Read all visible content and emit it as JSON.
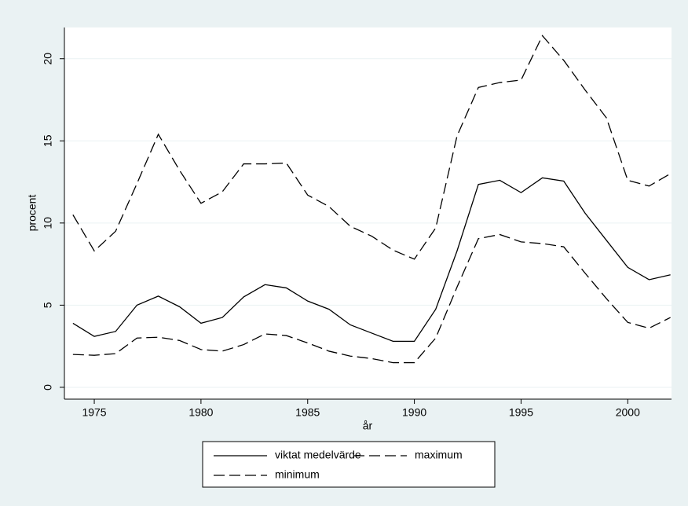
{
  "chart_data": {
    "type": "line",
    "x": [
      1974,
      1975,
      1976,
      1977,
      1978,
      1979,
      1980,
      1981,
      1982,
      1983,
      1984,
      1985,
      1986,
      1987,
      1988,
      1989,
      1990,
      1991,
      1992,
      1993,
      1994,
      1995,
      1996,
      1997,
      1998,
      1999,
      2000,
      2001,
      2002
    ],
    "series": [
      {
        "name": "viktat medelvärde",
        "color": "#000000",
        "style": "solid",
        "values": [
          3.9,
          3.1,
          3.4,
          5.0,
          5.55,
          4.9,
          3.9,
          4.25,
          5.5,
          6.25,
          6.05,
          5.25,
          4.75,
          3.8,
          3.3,
          2.8,
          2.8,
          4.75,
          8.3,
          12.35,
          12.6,
          11.85,
          12.75,
          12.55,
          10.6,
          8.95,
          7.3,
          6.55,
          6.85
        ]
      },
      {
        "name": "maximum",
        "color": "#000000",
        "style": "dashed",
        "values": [
          10.5,
          8.3,
          9.5,
          12.4,
          15.4,
          13.2,
          11.2,
          11.9,
          13.6,
          13.6,
          13.65,
          11.7,
          11.0,
          9.8,
          9.2,
          8.35,
          7.8,
          9.7,
          15.3,
          18.25,
          18.55,
          18.7,
          21.4,
          19.9,
          18.1,
          16.4,
          12.6,
          12.25,
          13.0
        ]
      },
      {
        "name": "minimum",
        "color": "#000000",
        "style": "dashed",
        "values": [
          2.0,
          1.95,
          2.05,
          3.0,
          3.05,
          2.85,
          2.3,
          2.2,
          2.6,
          3.25,
          3.15,
          2.7,
          2.2,
          1.9,
          1.75,
          1.5,
          1.5,
          3.0,
          6.1,
          9.05,
          9.3,
          8.85,
          8.75,
          8.55,
          6.95,
          5.4,
          3.95,
          3.6,
          4.25
        ]
      }
    ],
    "x_label": "år",
    "y_label": "procent",
    "xlim": [
      1973.6,
      2002.05
    ],
    "xticks": [
      1975,
      1980,
      1985,
      1990,
      1995,
      2000
    ],
    "ylim": [
      -0.72,
      21.9
    ],
    "yticks": [
      0,
      5,
      10,
      15,
      20
    ],
    "grid": true
  }
}
